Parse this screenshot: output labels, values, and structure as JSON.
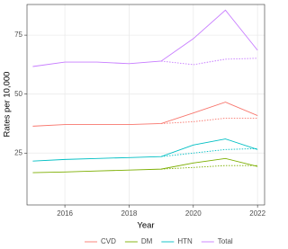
{
  "chart_data": {
    "type": "line",
    "x_label": "Year",
    "y_label": "Rates per 10,000",
    "x": [
      2015,
      2016,
      2017,
      2018,
      2019,
      2020,
      2021,
      2022
    ],
    "xlim": [
      2014.82,
      2022.22
    ],
    "xticks": [
      2016,
      2018,
      2020,
      2022
    ],
    "ylim": [
      3,
      88
    ],
    "yticks": [
      25,
      50,
      75
    ],
    "grid": true,
    "legend": "bottom",
    "expected_line_style": "dotted",
    "series": [
      {
        "name": "CVD",
        "color": "#F8766D",
        "values": [
          36.4,
          37.1,
          37.1,
          37.1,
          37.5,
          42,
          46.6,
          40.9
        ],
        "expected_values": [
          null,
          null,
          null,
          null,
          37.5,
          38.3,
          39.8,
          39.8
        ]
      },
      {
        "name": "DM",
        "color": "#7CAE00",
        "values": [
          16.7,
          17,
          17.4,
          17.8,
          18.2,
          20.8,
          22.7,
          19.3
        ],
        "expected_values": [
          null,
          null,
          null,
          null,
          18.2,
          18.9,
          19.7,
          19.7
        ]
      },
      {
        "name": "HTN",
        "color": "#00BFC4",
        "values": [
          21.6,
          22.3,
          22.7,
          23.1,
          23.5,
          28.4,
          31,
          26.5
        ],
        "expected_values": [
          null,
          null,
          null,
          null,
          23.5,
          25,
          26.5,
          26.9
        ]
      },
      {
        "name": "Total",
        "color": "#C77CFF",
        "values": [
          61.7,
          63.6,
          63.6,
          62.9,
          64,
          73.5,
          85.6,
          68.6
        ],
        "expected_values": [
          null,
          null,
          null,
          null,
          64,
          62.5,
          64.8,
          65.2
        ]
      }
    ]
  }
}
